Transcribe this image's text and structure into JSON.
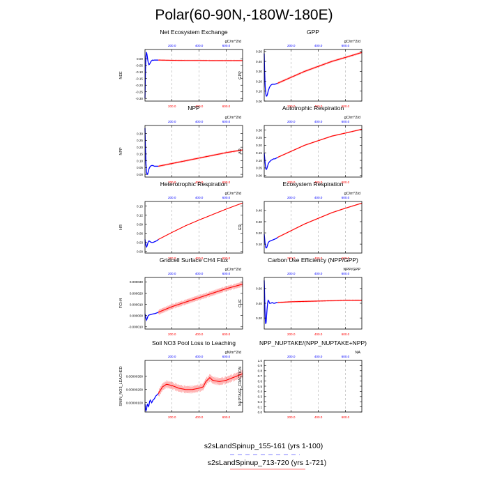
{
  "page": {
    "title": "Polar(60-90N,-180W-180E)",
    "legend": [
      {
        "label": "s2sLandSpinup_155-161 (yrs 1-100)",
        "color": "#0000ff",
        "dash": true
      },
      {
        "label": "s2sLandSpinup_713-720 (yrs 1-721)",
        "color": "#ff0000",
        "dash": false
      }
    ]
  },
  "colors": {
    "series_a": "#0000ff",
    "series_b": "#ff0000",
    "grid": "#aaaaaa",
    "axis": "#000000"
  },
  "chart_data": [
    {
      "type": "line",
      "title": "Net Ecosystem Exchange",
      "units": "gC/m^2/d",
      "ylabel": "NEE",
      "xlim": [
        1,
        721
      ],
      "ylim": [
        -0.32,
        0.07
      ],
      "yticks": [
        0.0,
        -0.05,
        -0.1,
        -0.15,
        -0.2,
        -0.25,
        -0.3
      ],
      "yticklabels": [
        "0.00",
        "-0.05",
        "-0.10",
        "-0.15",
        "-0.20",
        "-0.25",
        "-0.30"
      ],
      "xticks_top": [
        200,
        400,
        600
      ],
      "xticks_top_labels": [
        "200.0",
        "400.0",
        "600.0"
      ],
      "xticks_bottom": [
        200,
        400,
        600
      ],
      "xticks_bottom_labels": [
        "200.0",
        "400.0",
        "600.0"
      ],
      "series": [
        {
          "name": "s2sLandSpinup_155-161",
          "color": "#0000ff",
          "x": [
            1,
            4,
            8,
            12,
            16,
            20,
            25,
            30,
            35,
            40,
            45,
            50,
            55,
            60,
            70,
            80,
            90,
            100
          ],
          "y": [
            -0.3,
            -0.1,
            0.02,
            0.05,
            0.03,
            0.0,
            -0.03,
            -0.045,
            -0.04,
            -0.03,
            -0.02,
            -0.015,
            -0.01,
            -0.012,
            -0.01,
            -0.01,
            -0.01,
            -0.01
          ]
        },
        {
          "name": "s2sLandSpinup_713-720",
          "color": "#ff0000",
          "spread": 0.006,
          "x": [
            100,
            200,
            300,
            400,
            500,
            600,
            721
          ],
          "y": [
            -0.01,
            -0.012,
            -0.013,
            -0.013,
            -0.014,
            -0.014,
            -0.014
          ]
        }
      ]
    },
    {
      "type": "line",
      "title": "GPP",
      "units": "gC/m^2/d",
      "ylabel": "GPP",
      "xlim": [
        1,
        721
      ],
      "ylim": [
        0,
        0.52
      ],
      "yticks": [
        0.0,
        0.1,
        0.2,
        0.3,
        0.4,
        0.5
      ],
      "yticklabels": [
        "0.00",
        "0.10",
        "0.20",
        "0.30",
        "0.40",
        "0.50"
      ],
      "xticks_top": [
        200,
        400,
        600
      ],
      "xticks_top_labels": [
        "200.0",
        "400.0",
        "600.0"
      ],
      "xticks_bottom": [
        200,
        400,
        600
      ],
      "xticks_bottom_labels": [
        "200.0",
        "400.0",
        "600.0"
      ],
      "series": [
        {
          "name": "s2sLandSpinup_155-161",
          "color": "#0000ff",
          "x": [
            1,
            4,
            8,
            12,
            16,
            20,
            25,
            30,
            35,
            40,
            50,
            60,
            70,
            80,
            90,
            100
          ],
          "y": [
            0.48,
            0.3,
            0.15,
            0.08,
            0.05,
            0.05,
            0.07,
            0.1,
            0.12,
            0.14,
            0.16,
            0.17,
            0.17,
            0.17,
            0.175,
            0.18
          ]
        },
        {
          "name": "s2sLandSpinup_713-720",
          "color": "#ff0000",
          "spread": 0.012,
          "x": [
            100,
            150,
            200,
            300,
            400,
            500,
            600,
            721
          ],
          "y": [
            0.18,
            0.21,
            0.24,
            0.3,
            0.35,
            0.4,
            0.44,
            0.49
          ]
        }
      ]
    },
    {
      "type": "line",
      "title": "NPP",
      "units": "gC/m^2/d",
      "ylabel": "NPP",
      "xlim": [
        1,
        721
      ],
      "ylim": [
        -0.02,
        0.36
      ],
      "yticks": [
        0.0,
        0.05,
        0.1,
        0.15,
        0.2,
        0.25,
        0.3
      ],
      "yticklabels": [
        "0.00",
        "0.05",
        "0.10",
        "0.15",
        "0.20",
        "0.25",
        "0.30"
      ],
      "xticks_top": [
        200,
        400,
        600
      ],
      "xticks_top_labels": [
        "200.0",
        "400.0",
        "600.0"
      ],
      "xticks_bottom": [
        200,
        400,
        600
      ],
      "xticks_bottom_labels": [
        "200.0",
        "400.0",
        "600.0"
      ],
      "series": [
        {
          "name": "s2sLandSpinup_155-161",
          "color": "#0000ff",
          "x": [
            1,
            4,
            8,
            12,
            16,
            20,
            25,
            30,
            35,
            40,
            50,
            60,
            70,
            80,
            90,
            100
          ],
          "y": [
            0.34,
            0.2,
            0.08,
            0.02,
            0.0,
            0.0,
            0.02,
            0.04,
            0.05,
            0.06,
            0.065,
            0.065,
            0.06,
            0.06,
            0.06,
            0.06
          ]
        },
        {
          "name": "s2sLandSpinup_713-720",
          "color": "#ff0000",
          "spread": 0.008,
          "x": [
            100,
            200,
            300,
            400,
            500,
            600,
            721
          ],
          "y": [
            0.06,
            0.08,
            0.1,
            0.12,
            0.14,
            0.16,
            0.18
          ]
        }
      ]
    },
    {
      "type": "line",
      "title": "Autotrophic Respiration",
      "units": "gC/m^2/d",
      "ylabel": "AR",
      "xlim": [
        1,
        721
      ],
      "ylim": [
        -0.01,
        0.33
      ],
      "yticks": [
        0.0,
        0.05,
        0.1,
        0.15,
        0.2,
        0.25,
        0.3
      ],
      "yticklabels": [
        "0.00",
        "0.05",
        "0.10",
        "0.15",
        "0.20",
        "0.25",
        "0.30"
      ],
      "xticks_top": [
        200,
        400,
        600
      ],
      "xticks_top_labels": [
        "200.0",
        "400.0",
        "600.0"
      ],
      "xticks_bottom": [
        200,
        400,
        600
      ],
      "xticks_bottom_labels": [
        "200.0",
        "400.0",
        "600.0"
      ],
      "series": [
        {
          "name": "s2sLandSpinup_155-161",
          "color": "#0000ff",
          "x": [
            1,
            4,
            8,
            12,
            16,
            20,
            25,
            30,
            35,
            40,
            50,
            60,
            70,
            80,
            90,
            100
          ],
          "y": [
            0.15,
            0.12,
            0.08,
            0.05,
            0.04,
            0.045,
            0.06,
            0.075,
            0.085,
            0.09,
            0.1,
            0.105,
            0.11,
            0.11,
            0.115,
            0.12
          ]
        },
        {
          "name": "s2sLandSpinup_713-720",
          "color": "#ff0000",
          "spread": 0.005,
          "x": [
            100,
            150,
            200,
            300,
            400,
            500,
            600,
            721
          ],
          "y": [
            0.12,
            0.14,
            0.16,
            0.2,
            0.23,
            0.26,
            0.28,
            0.305
          ]
        }
      ]
    },
    {
      "type": "line",
      "title": "Heterotrophic Respiration",
      "units": "gC/m^2/d",
      "ylabel": "HR",
      "xlim": [
        1,
        721
      ],
      "ylim": [
        -0.005,
        0.165
      ],
      "yticks": [
        0.0,
        0.03,
        0.06,
        0.09,
        0.12,
        0.15
      ],
      "yticklabels": [
        "0.00",
        "0.03",
        "0.06",
        "0.09",
        "0.12",
        "0.15"
      ],
      "xticks_top": [
        200,
        400,
        600
      ],
      "xticks_top_labels": [
        "200.0",
        "400.0",
        "600.0"
      ],
      "xticks_bottom": [
        200,
        400,
        600
      ],
      "xticks_bottom_labels": [
        "200.0",
        "400.0",
        "600.0"
      ],
      "series": [
        {
          "name": "s2sLandSpinup_155-161",
          "color": "#0000ff",
          "x": [
            1,
            4,
            8,
            12,
            16,
            20,
            25,
            30,
            35,
            40,
            50,
            60,
            70,
            80,
            90,
            100
          ],
          "y": [
            0.04,
            0.03,
            0.02,
            0.015,
            0.018,
            0.025,
            0.032,
            0.035,
            0.034,
            0.032,
            0.03,
            0.03,
            0.032,
            0.034,
            0.036,
            0.04
          ]
        },
        {
          "name": "s2sLandSpinup_713-720",
          "color": "#ff0000",
          "spread": 0.0015,
          "x": [
            100,
            200,
            300,
            400,
            500,
            600,
            721
          ],
          "y": [
            0.04,
            0.063,
            0.085,
            0.104,
            0.122,
            0.14,
            0.16
          ]
        }
      ]
    },
    {
      "type": "line",
      "title": "Ecosystem Respiration",
      "units": "gC/m^2/d",
      "ylabel": "ER",
      "xlim": [
        1,
        721
      ],
      "ylim": [
        0.02,
        0.48
      ],
      "yticks": [
        0.1,
        0.2,
        0.3,
        0.4
      ],
      "yticklabels": [
        "0.10",
        "0.20",
        "0.30",
        "0.40"
      ],
      "xticks_top": [
        200,
        400,
        600
      ],
      "xticks_top_labels": [
        "200.0",
        "400.0",
        "600.0"
      ],
      "xticks_bottom": [
        200,
        400,
        600
      ],
      "xticks_bottom_labels": [
        "200.0",
        "400.0",
        "600.0"
      ],
      "series": [
        {
          "name": "s2sLandSpinup_155-161",
          "color": "#0000ff",
          "x": [
            1,
            4,
            8,
            12,
            16,
            20,
            25,
            30,
            35,
            40,
            50,
            60,
            70,
            80,
            90,
            100
          ],
          "y": [
            0.19,
            0.15,
            0.1,
            0.07,
            0.065,
            0.07,
            0.09,
            0.11,
            0.12,
            0.125,
            0.13,
            0.135,
            0.14,
            0.145,
            0.15,
            0.16
          ]
        },
        {
          "name": "s2sLandSpinup_713-720",
          "color": "#ff0000",
          "spread": 0.006,
          "x": [
            100,
            150,
            200,
            300,
            400,
            500,
            600,
            721
          ],
          "y": [
            0.16,
            0.19,
            0.22,
            0.28,
            0.33,
            0.38,
            0.42,
            0.465
          ]
        }
      ]
    },
    {
      "type": "line",
      "title": "Gridcell Surface CH4 Flux",
      "units": "gC/m^2/d",
      "ylabel": "FCH4",
      "xlim": [
        1,
        721
      ],
      "ylim": [
        -1.2e-05,
        3.4e-05
      ],
      "yticks": [
        -1e-05,
        0.0,
        1e-05,
        2e-05,
        3e-05
      ],
      "yticklabels": [
        "-0.000010",
        "0.000000",
        "0.000010",
        "0.000020",
        "0.000030"
      ],
      "xticks_top": [
        200,
        400,
        600
      ],
      "xticks_top_labels": [
        "200.0",
        "400.0",
        "600.0"
      ],
      "xticks_bottom": [
        200,
        400,
        600
      ],
      "xticks_bottom_labels": [
        "200.0",
        "400.0",
        "600.0"
      ],
      "series": [
        {
          "name": "s2sLandSpinup_155-161",
          "color": "#0000ff",
          "x": [
            1,
            4,
            8,
            12,
            16,
            20,
            25,
            30,
            40,
            50,
            60,
            70,
            80,
            90,
            100
          ],
          "y": [
            1.5e-06,
            0.0,
            -2.5e-06,
            -4e-06,
            -3e-06,
            -1.5e-06,
            0.0,
            5e-07,
            8e-07,
            1.2e-06,
            1.5e-06,
            1.7e-06,
            2e-06,
            2.5e-06,
            3e-06
          ]
        },
        {
          "name": "s2sLandSpinup_713-720",
          "color": "#ff0000",
          "spread": 2.5e-06,
          "x": [
            100,
            200,
            300,
            400,
            500,
            600,
            721
          ],
          "y": [
            3e-06,
            8e-06,
            1.2e-05,
            1.6e-05,
            2e-05,
            2.4e-05,
            2.8e-05
          ]
        }
      ]
    },
    {
      "type": "line",
      "title": "Carbon Use Efficiency (NPP/GPP)",
      "units": "NPP/GPP",
      "ylabel": "CUE",
      "xlim": [
        1,
        721
      ],
      "ylim": [
        0.05,
        0.75
      ],
      "yticks": [
        0.2,
        0.4,
        0.6
      ],
      "yticklabels": [
        "0.20",
        "0.40",
        "0.60"
      ],
      "xticks_top": [
        200,
        400,
        600
      ],
      "xticks_top_labels": [
        "200.0",
        "400.0",
        "600.0"
      ],
      "xticks_bottom": [
        200,
        400,
        600
      ],
      "xticks_bottom_labels": [
        "200.0",
        "400.0",
        "600.0"
      ],
      "series": [
        {
          "name": "s2sLandSpinup_155-161",
          "color": "#0000ff",
          "x": [
            1,
            3,
            6,
            9,
            12,
            15,
            18,
            22,
            26,
            30,
            35,
            40,
            50,
            60,
            70,
            80,
            90,
            100
          ],
          "y": [
            0.71,
            0.6,
            0.35,
            0.18,
            0.12,
            0.14,
            0.22,
            0.32,
            0.4,
            0.44,
            0.43,
            0.4,
            0.4,
            0.41,
            0.4,
            0.4,
            0.41,
            0.41
          ]
        },
        {
          "name": "s2sLandSpinup_713-720",
          "color": "#ff0000",
          "spread": 0.012,
          "x": [
            100,
            200,
            300,
            400,
            500,
            600,
            721
          ],
          "y": [
            0.41,
            0.42,
            0.425,
            0.43,
            0.435,
            0.44,
            0.44
          ]
        }
      ]
    },
    {
      "type": "line",
      "title": "Soil NO3 Pool Loss to Leaching",
      "units": "gN/m^2/d",
      "ylabel": "SMIN_NO3_LEACHED",
      "xlim": [
        1,
        721
      ],
      "ylim": [
        3e-07,
        4.2e-06
      ],
      "yticks": [
        1e-06,
        2e-06,
        3e-06
      ],
      "yticklabels": [
        "0.00000100",
        "0.00000200",
        "0.00000300"
      ],
      "xticks_top": [
        200,
        400,
        600
      ],
      "xticks_top_labels": [
        "200.0",
        "400.0",
        "600.0"
      ],
      "xticks_bottom": [
        200,
        400,
        600
      ],
      "xticks_bottom_labels": [
        "200.0",
        "400.0",
        "600.0"
      ],
      "series": [
        {
          "name": "s2sLandSpinup_155-161",
          "color": "#0000ff",
          "x": [
            1,
            4,
            8,
            12,
            16,
            20,
            25,
            30,
            35,
            40,
            50,
            60,
            70,
            80,
            90,
            100
          ],
          "y": [
            9e-07,
            6e-07,
            4e-07,
            5e-07,
            8e-07,
            9e-07,
            7e-07,
            8e-07,
            1.1e-06,
            1.2e-06,
            1e-06,
            1.2e-06,
            1.3e-06,
            1.5e-06,
            1.6e-06,
            1.7e-06
          ]
        },
        {
          "name": "s2sLandSpinup_713-720",
          "color": "#ff0000",
          "spread": 3e-07,
          "x": [
            100,
            130,
            160,
            200,
            250,
            300,
            350,
            400,
            430,
            450,
            480,
            500,
            550,
            600,
            650,
            700,
            721
          ],
          "y": [
            1.7e-06,
            2.2e-06,
            2.4e-06,
            2.3e-06,
            2.1e-06,
            2e-06,
            2e-06,
            2.1e-06,
            2.2e-06,
            2.6e-06,
            2.9e-06,
            2.7e-06,
            2.6e-06,
            2.7e-06,
            2.9e-06,
            3.1e-06,
            3.2e-06
          ]
        }
      ]
    },
    {
      "type": "line",
      "title": "NPP_NUPTAKE/(NPP_NUPTAKE+NPP)",
      "units": "NA",
      "ylabel": "NUPTAKE_FRACTION",
      "xlim": [
        1,
        721
      ],
      "ylim": [
        0,
        1
      ],
      "yticks": [
        0.0,
        0.1,
        0.2,
        0.3,
        0.4,
        0.5,
        0.6,
        0.7,
        0.8,
        0.9,
        1.0
      ],
      "yticklabels": [
        "0.0",
        "0.1",
        "0.2",
        "0.3",
        "0.4",
        "0.5",
        "0.6",
        "0.7",
        "0.8",
        "0.9",
        "1.0"
      ],
      "xticks_top": [
        200,
        400,
        600
      ],
      "xticks_top_labels": [
        "200.0",
        "400.0",
        "600.0"
      ],
      "xticks_bottom": [
        200,
        400,
        600
      ],
      "xticks_bottom_labels": [
        "200.0",
        "400.0",
        "600.0"
      ],
      "series": []
    }
  ]
}
